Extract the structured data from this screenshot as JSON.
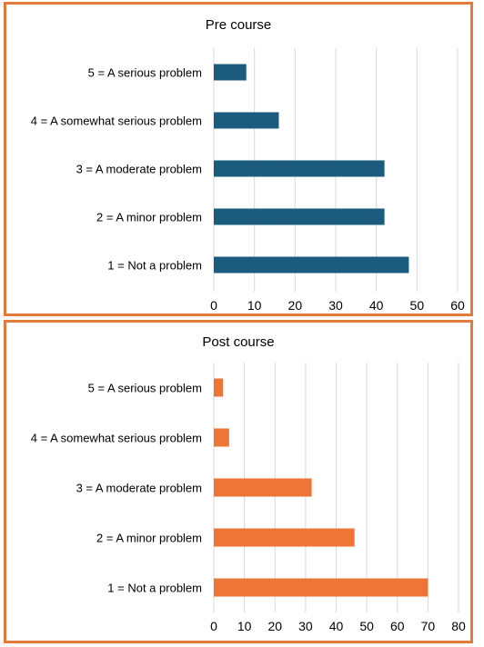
{
  "chart_data": [
    {
      "type": "bar",
      "orientation": "horizontal",
      "title": "Pre course",
      "categories": [
        "5 = A serious problem",
        "4 = A somewhat serious problem",
        "3 = A moderate problem",
        "2 = A minor problem",
        "1 = Not a problem"
      ],
      "values": [
        8,
        16,
        42,
        42,
        48
      ],
      "xlim": [
        0,
        60
      ],
      "xticks": [
        0,
        10,
        20,
        30,
        40,
        50,
        60
      ],
      "grid": "vertical",
      "bar_color": "#1b5c7e"
    },
    {
      "type": "bar",
      "orientation": "horizontal",
      "title": "Post course",
      "categories": [
        "5 = A serious problem",
        "4 = A somewhat serious problem",
        "3 = A moderate problem",
        "2 = A minor problem",
        "1 = Not a problem"
      ],
      "values": [
        3,
        5,
        32,
        46,
        70
      ],
      "xlim": [
        0,
        80
      ],
      "xticks": [
        0,
        10,
        20,
        30,
        40,
        50,
        60,
        70,
        80
      ],
      "grid": "vertical",
      "bar_color": "#ed7535"
    }
  ],
  "colors": {
    "border": "#e07b39",
    "grid": "#d9d9d9",
    "text": "#000000"
  }
}
